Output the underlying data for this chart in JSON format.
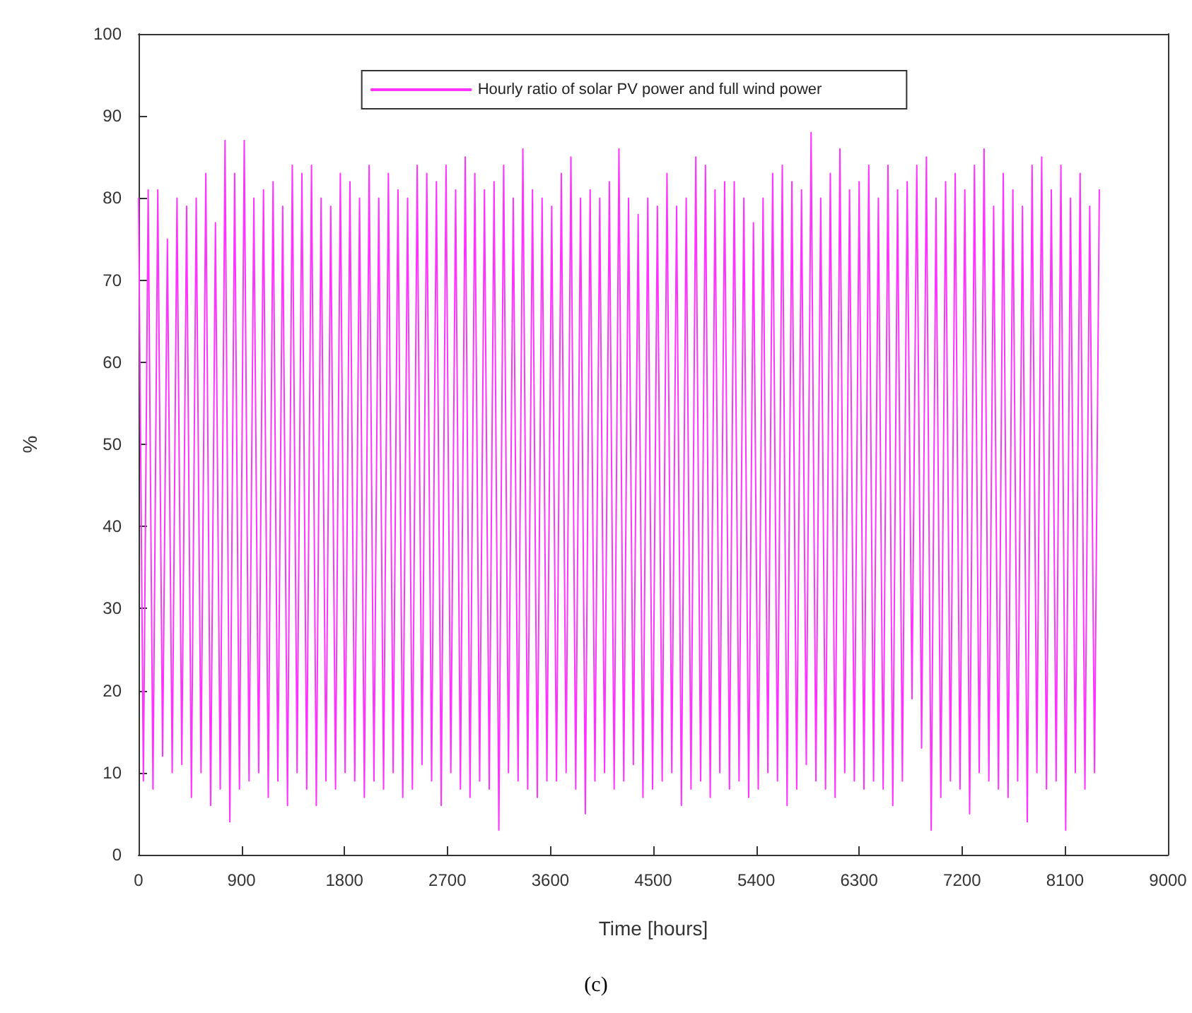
{
  "chart_data": {
    "type": "line",
    "xlabel": "Time [hours]",
    "ylabel": "%",
    "annotations": [
      "(c)"
    ],
    "xlim": [
      0,
      9000
    ],
    "xticks": [
      0,
      900,
      1800,
      2700,
      3600,
      4500,
      5400,
      6300,
      7200,
      8100,
      9000
    ],
    "ylim": [
      0,
      100
    ],
    "yticks": [
      0,
      10,
      20,
      30,
      40,
      50,
      60,
      70,
      80,
      90,
      100
    ],
    "grid": false,
    "legend": "top",
    "marker": "none",
    "line_style": "solid",
    "series": [
      {
        "name": "Hourly ratio of solar PV power and full wind power",
        "color": "#ff33ff",
        "x": [
          0,
          42,
          84,
          126,
          168,
          210,
          252,
          294,
          336,
          378,
          420,
          462,
          504,
          546,
          588,
          630,
          672,
          714,
          756,
          798,
          840,
          882,
          924,
          966,
          1008,
          1050,
          1092,
          1134,
          1176,
          1218,
          1260,
          1302,
          1344,
          1386,
          1428,
          1470,
          1512,
          1554,
          1596,
          1638,
          1680,
          1722,
          1764,
          1806,
          1848,
          1890,
          1932,
          1974,
          2016,
          2058,
          2100,
          2142,
          2184,
          2226,
          2268,
          2310,
          2352,
          2394,
          2436,
          2478,
          2520,
          2562,
          2604,
          2646,
          2688,
          2730,
          2772,
          2814,
          2856,
          2898,
          2940,
          2982,
          3024,
          3066,
          3108,
          3150,
          3192,
          3234,
          3276,
          3318,
          3360,
          3402,
          3444,
          3486,
          3528,
          3570,
          3612,
          3654,
          3696,
          3738,
          3780,
          3822,
          3864,
          3906,
          3948,
          3990,
          4032,
          4074,
          4116,
          4158,
          4200,
          4242,
          4284,
          4326,
          4368,
          4410,
          4452,
          4494,
          4536,
          4578,
          4620,
          4662,
          4704,
          4746,
          4788,
          4830,
          4872,
          4914,
          4956,
          4998,
          5040,
          5082,
          5124,
          5166,
          5208,
          5250,
          5292,
          5334,
          5376,
          5418,
          5460,
          5502,
          5544,
          5586,
          5628,
          5670,
          5712,
          5754,
          5796,
          5838,
          5880,
          5922,
          5964,
          6006,
          6048,
          6090,
          6132,
          6174,
          6216,
          6258,
          6300,
          6342,
          6384,
          6426,
          6468,
          6510,
          6552,
          6594,
          6636,
          6678,
          6720,
          6762,
          6804,
          6846,
          6888,
          6930,
          6972,
          7014,
          7056,
          7098,
          7140,
          7182,
          7224,
          7266,
          7308,
          7350,
          7392,
          7434,
          7476,
          7518,
          7560,
          7602,
          7644,
          7686,
          7728,
          7770,
          7812,
          7854,
          7896,
          7938,
          7980,
          8022,
          8064,
          8106,
          8148,
          8190,
          8232,
          8274,
          8316,
          8358,
          8400
        ],
        "values": [
          80,
          9,
          81,
          8,
          81,
          12,
          75,
          10,
          80,
          11,
          79,
          7,
          80,
          10,
          83,
          6,
          77,
          8,
          87,
          4,
          83,
          8,
          87,
          9,
          80,
          10,
          81,
          7,
          82,
          9,
          79,
          6,
          84,
          10,
          83,
          8,
          84,
          6,
          80,
          9,
          79,
          8,
          83,
          10,
          82,
          9,
          80,
          7,
          84,
          9,
          80,
          8,
          83,
          10,
          81,
          7,
          80,
          8,
          84,
          11,
          83,
          9,
          82,
          6,
          84,
          10,
          81,
          8,
          85,
          7,
          83,
          9,
          81,
          8,
          82,
          3,
          84,
          10,
          80,
          9,
          86,
          8,
          81,
          7,
          80,
          9,
          79,
          9,
          83,
          10,
          85,
          8,
          80,
          5,
          81,
          9,
          80,
          10,
          82,
          8,
          86,
          9,
          80,
          11,
          78,
          7,
          80,
          8,
          79,
          9,
          83,
          10,
          79,
          6,
          80,
          8,
          85,
          9,
          84,
          7,
          81,
          10,
          82,
          8,
          82,
          9,
          80,
          7,
          77,
          8,
          80,
          10,
          83,
          9,
          84,
          6,
          82,
          8,
          81,
          11,
          88,
          9,
          80,
          8,
          83,
          7,
          86,
          10,
          81,
          9,
          82,
          8,
          84,
          9,
          80,
          8,
          84,
          6,
          81,
          9,
          82,
          19,
          84,
          13,
          85,
          3,
          80,
          7,
          82,
          9,
          83,
          8,
          81,
          5,
          84,
          10,
          86,
          9,
          79,
          8,
          83,
          7,
          81,
          9,
          79,
          4,
          84,
          10,
          85,
          8,
          81,
          9,
          84,
          3,
          80,
          10,
          83,
          8,
          79,
          10,
          81
        ]
      }
    ]
  }
}
